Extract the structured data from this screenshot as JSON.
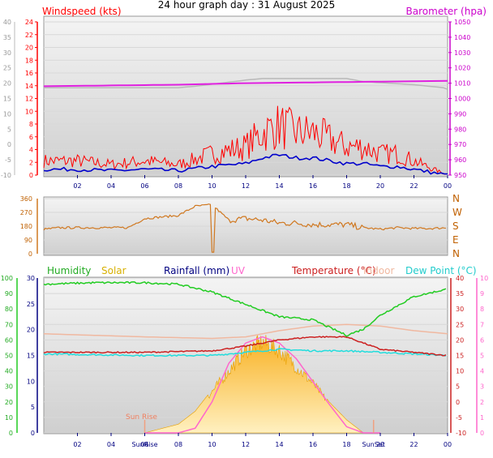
{
  "header": {
    "title": "24 hour graph day : 31 August 2025"
  },
  "x_ticks": [
    "02",
    "04",
    "06",
    "08",
    "10",
    "12",
    "14",
    "16",
    "18",
    "20",
    "22",
    "00"
  ],
  "wind_panel": {
    "label_left": "Windspeed (kts)",
    "label_right": "Barometer (hpa)",
    "left_outer_ticks": [
      "40",
      "35",
      "30",
      "25",
      "20",
      "15",
      "10",
      "5",
      "0",
      "-5",
      "-10"
    ],
    "left_inner_ticks": [
      "24",
      "22",
      "20",
      "18",
      "16",
      "14",
      "12",
      "10",
      "8",
      "6",
      "4",
      "2",
      "0"
    ],
    "right_ticks": [
      "1050",
      "1040",
      "1030",
      "1020",
      "1010",
      "1000",
      "990",
      "980",
      "970",
      "960",
      "950"
    ]
  },
  "dir_panel": {
    "left_ticks": [
      "360",
      "270",
      "180",
      "90",
      "0"
    ],
    "right_letters": [
      "N",
      "W",
      "S",
      "E",
      "N"
    ]
  },
  "bottom_panel": {
    "labels": {
      "humidity": "Humidity",
      "solar": "Solar",
      "rainfall": "Rainfall (mm)",
      "uv": "UV",
      "temperature": "Temperature (°C)",
      "indoor": "Indoor",
      "dew_point": "Dew Point (°C)"
    },
    "humidity_ticks": [
      "100",
      "90",
      "80",
      "70",
      "60",
      "50",
      "40",
      "30",
      "20",
      "10",
      "0"
    ],
    "rain_ticks": [
      "30",
      "25",
      "20",
      "15",
      "10",
      "5",
      "0"
    ],
    "temp_ticks": [
      "40",
      "35",
      "30",
      "25",
      "20",
      "15",
      "10",
      "5",
      "0",
      "-5",
      "-10"
    ],
    "uv_ticks": [
      "10",
      "9",
      "8",
      "7",
      "6",
      "5",
      "4",
      "3",
      "2",
      "1",
      "0"
    ],
    "sunrise_label": "Sun Rise",
    "sunrise_axis_label": "SunRise",
    "sunset_axis_label": "SunSet"
  },
  "colors": {
    "wind": "#ff0000",
    "gust_avg": "#0000cc",
    "barometer": "#e020e0",
    "indoor_baro": "#b8b8b8",
    "direction": "#d07820",
    "humidity": "#22cc22",
    "solar": "#f0b030",
    "temperature": "#cc2020",
    "dewpoint": "#22dddd",
    "indoor": "#f0b8a0",
    "uv": "#ff66cc",
    "rain": "#000080"
  },
  "chart_data": [
    {
      "type": "line",
      "series": [
        {
          "name": "Windspeed (kts)",
          "x": [
            0,
            2,
            4,
            6,
            8,
            10,
            12,
            13,
            14,
            15,
            16,
            17,
            18,
            19,
            20,
            21,
            22,
            23,
            24
          ],
          "values": [
            2,
            2,
            1.5,
            2,
            1.5,
            3,
            4,
            6,
            7,
            6,
            6,
            5,
            4,
            4,
            3,
            3,
            2,
            1,
            0
          ]
        },
        {
          "name": "Barometer (hpa)",
          "x": [
            0,
            4,
            8,
            12,
            16,
            20,
            24
          ],
          "values": [
            1008,
            1008.5,
            1009,
            1010,
            1010.5,
            1011,
            1011.5
          ]
        }
      ],
      "ylim": [
        0,
        24
      ],
      "y2lim": [
        950,
        1050
      ]
    },
    {
      "type": "line",
      "series": [
        {
          "name": "Wind direction",
          "x": [
            0,
            1,
            2,
            3,
            4,
            5,
            6,
            7,
            8,
            9,
            10,
            11,
            12,
            13,
            14,
            15,
            16,
            17,
            18,
            19,
            20,
            21,
            22,
            23,
            24
          ],
          "values": [
            160,
            170,
            170,
            170,
            170,
            170,
            230,
            240,
            250,
            310,
            320,
            220,
            230,
            220,
            200,
            200,
            190,
            190,
            190,
            170,
            160,
            170,
            165,
            165,
            170
          ]
        }
      ],
      "ylim": [
        0,
        360
      ]
    },
    {
      "type": "line",
      "series": [
        {
          "name": "Humidity",
          "x": [
            0,
            3,
            6,
            8,
            10,
            12,
            14,
            16,
            18,
            19,
            20,
            22,
            24
          ],
          "values": [
            96,
            97,
            97,
            96,
            91,
            83,
            75,
            73,
            63,
            67,
            76,
            88,
            93
          ]
        },
        {
          "name": "Temperature (°C)",
          "x": [
            0,
            6,
            10,
            12,
            14,
            16,
            18,
            19,
            20,
            22,
            24
          ],
          "values": [
            16,
            16,
            16.5,
            18,
            20,
            21,
            21,
            19,
            17,
            16,
            15
          ]
        },
        {
          "name": "Dew Point (°C)",
          "x": [
            0,
            6,
            10,
            12,
            14,
            16,
            18,
            20,
            22,
            24
          ],
          "values": [
            15.5,
            15,
            15,
            16,
            17,
            16.5,
            16.5,
            16,
            15.5,
            15
          ]
        },
        {
          "name": "Indoor",
          "x": [
            0,
            6,
            10,
            12,
            14,
            16,
            18,
            20,
            22,
            24
          ],
          "values": [
            22,
            21,
            20.5,
            21,
            23,
            24.5,
            25,
            24.5,
            23,
            22
          ]
        },
        {
          "name": "Solar",
          "x": [
            6,
            8,
            9,
            10,
            11,
            12,
            13,
            14,
            15,
            16,
            17,
            18,
            19,
            20
          ],
          "values": [
            0,
            0.2,
            0.5,
            1,
            1.5,
            2,
            2.2,
            2,
            1.6,
            1.2,
            0.7,
            0.3,
            0,
            0
          ]
        },
        {
          "name": "UV",
          "x": [
            6,
            8,
            9,
            10,
            11,
            12,
            13,
            14,
            15,
            16,
            17,
            18,
            19,
            20
          ],
          "values": [
            0,
            0,
            0.3,
            2,
            4.5,
            5.8,
            6.2,
            5.8,
            4.8,
            3.3,
            1.8,
            0.4,
            0,
            0
          ]
        }
      ]
    }
  ]
}
